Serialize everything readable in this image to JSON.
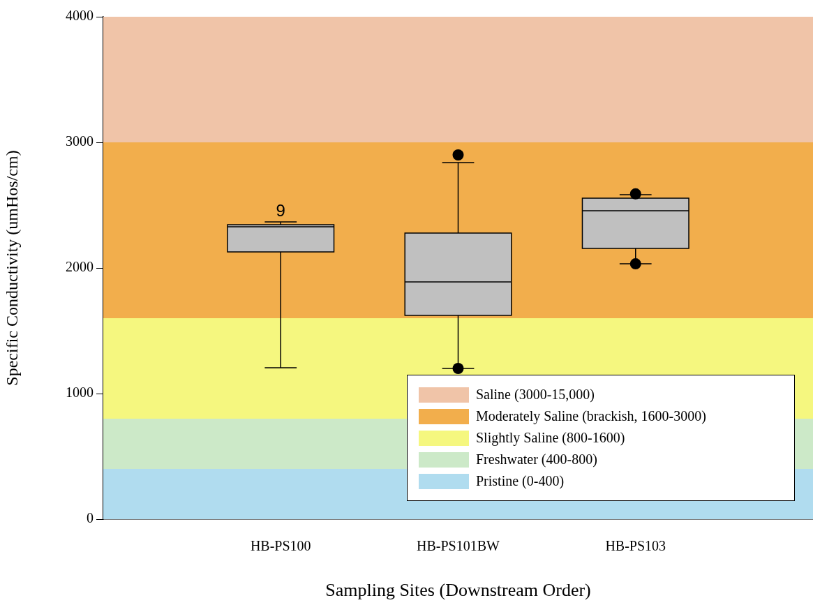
{
  "chart_data": {
    "type": "box",
    "xlabel": "Sampling Sites (Downstream Order)",
    "ylabel": "Specific Conductivity (umHos/cm)",
    "categories": [
      "HB-PS100",
      "HB-PS101BW",
      "HB-PS103"
    ],
    "color": "#c0c0c0",
    "boxes": [
      {
        "low": 1205,
        "q1": 2128,
        "median": 2328,
        "q3": 2344,
        "high": 2367
      },
      {
        "low": 1200,
        "q1": 1622,
        "median": 1889,
        "q3": 2278,
        "high": 2839,
        "outliers": [
          2900,
          1200
        ]
      },
      {
        "low": 2033,
        "q1": 2156,
        "median": 2456,
        "q3": 2556,
        "high": 2583,
        "outliers": [
          2590,
          2033
        ]
      }
    ],
    "ylim": [
      0,
      4000
    ],
    "yticks": [
      0,
      1000,
      2000,
      3000,
      4000
    ],
    "bands": [
      {
        "axis": "y",
        "from": 3000,
        "to": 4000,
        "label": "Saline (3000-15,000)",
        "color": "#f0c4a8"
      },
      {
        "axis": "y",
        "from": 1600,
        "to": 3000,
        "label": "Moderately Saline (brackish, 1600-3000)",
        "color": "#f2ae4c"
      },
      {
        "axis": "y",
        "from": 800,
        "to": 1600,
        "label": "Slightly Saline (800-1600)",
        "color": "#f5f77f"
      },
      {
        "axis": "y",
        "from": 400,
        "to": 800,
        "label": "Freshwater (400-800)",
        "color": "#cce9c8"
      },
      {
        "axis": "y",
        "from": 0,
        "to": 400,
        "label": "Pristine (0-400)",
        "color": "#b0dcef"
      }
    ],
    "annotations": [
      {
        "text": "9",
        "x": "HB-PS100",
        "y": 2370
      }
    ],
    "grid": false,
    "legend": "bottom right",
    "marker": "circle"
  }
}
